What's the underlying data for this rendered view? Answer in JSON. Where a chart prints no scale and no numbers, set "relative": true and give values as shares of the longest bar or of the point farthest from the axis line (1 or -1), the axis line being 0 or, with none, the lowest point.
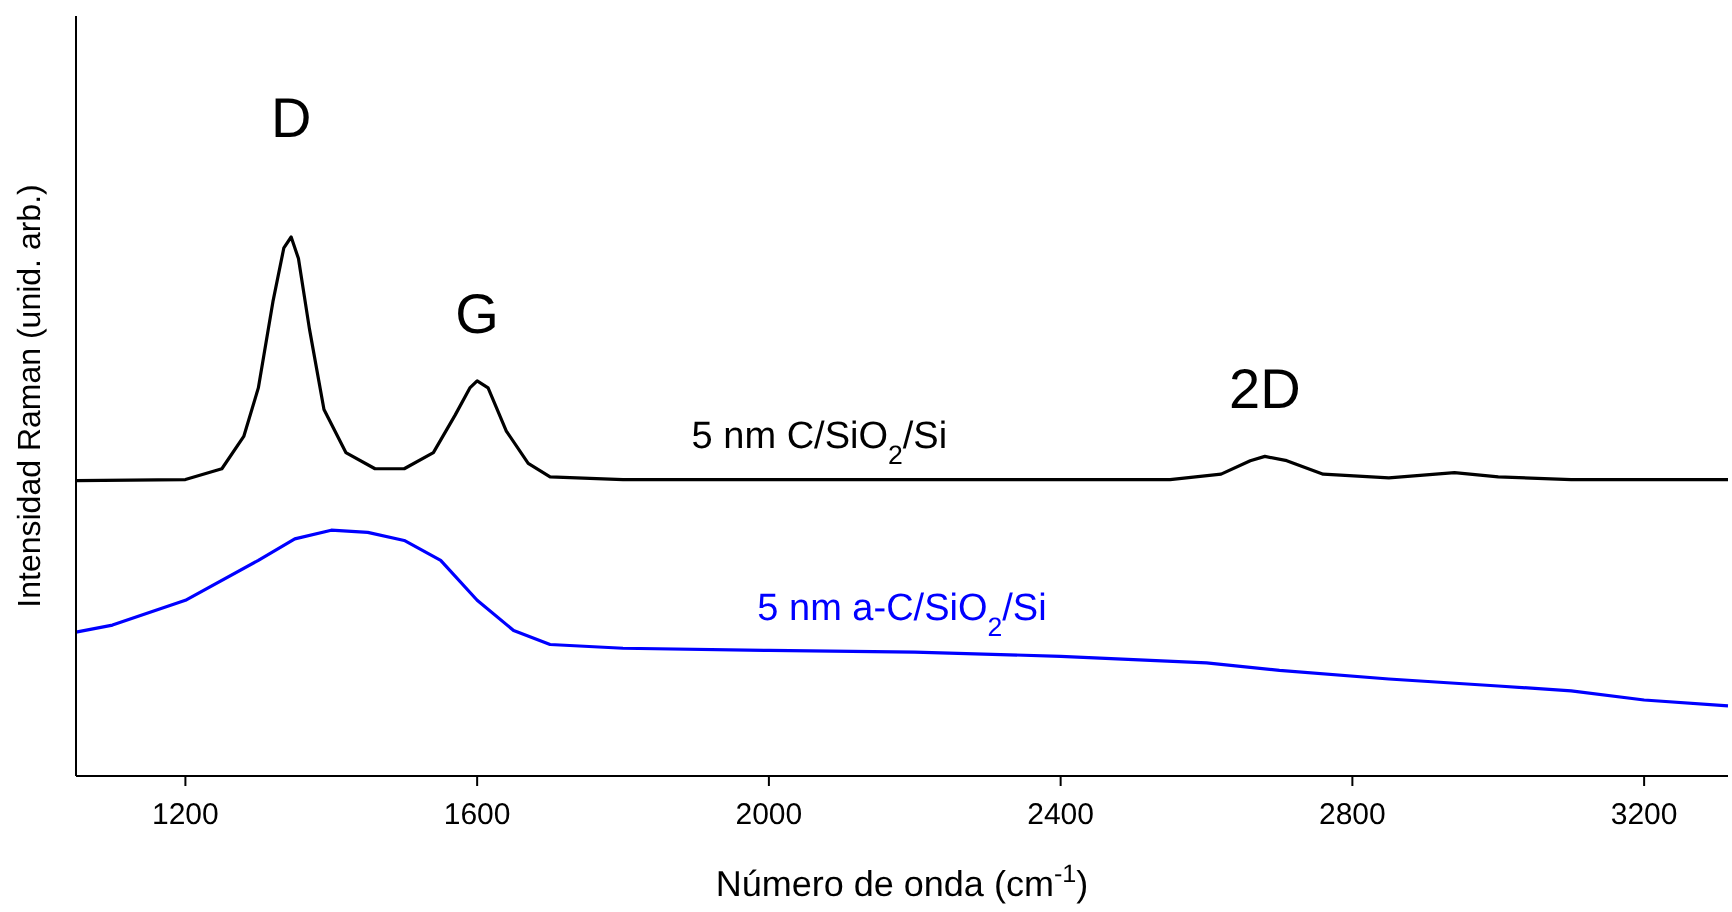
{
  "chart_data": {
    "type": "line",
    "relative": true,
    "xlabel": "Número de onda (cm$^{-1}$)",
    "ylabel": "Intensidad Raman (unid. arb.)",
    "xlim": [
      1050,
      3315
    ],
    "xticks": [
      1200,
      1600,
      2000,
      2400,
      2800,
      3200
    ],
    "grid": false,
    "marker": "none",
    "line_style": "solid",
    "annotations": [
      "D",
      "G",
      "2D"
    ],
    "series": [
      {
        "name": "5 nm C/SiO$_{2}$/Si",
        "color": "#000000",
        "x": [
          1050,
          1200,
          1250,
          1280,
          1300,
          1320,
          1335,
          1345,
          1355,
          1370,
          1390,
          1420,
          1460,
          1500,
          1540,
          1570,
          1590,
          1600,
          1615,
          1640,
          1670,
          1700,
          1800,
          2000,
          2300,
          2550,
          2620,
          2660,
          2680,
          2710,
          2760,
          2850,
          2940,
          3000,
          3100,
          3315
        ],
        "values": [
          0.548,
          0.55,
          0.57,
          0.63,
          0.72,
          0.88,
          0.98,
          1.0,
          0.96,
          0.83,
          0.68,
          0.6,
          0.57,
          0.57,
          0.6,
          0.67,
          0.72,
          0.733,
          0.72,
          0.64,
          0.58,
          0.555,
          0.55,
          0.55,
          0.55,
          0.55,
          0.56,
          0.585,
          0.593,
          0.585,
          0.56,
          0.553,
          0.563,
          0.555,
          0.55,
          0.55
        ]
      },
      {
        "name": "5 nm a-C/SiO$_{2}$/Si",
        "color": "#0000ff",
        "x": [
          1050,
          1100,
          1200,
          1300,
          1350,
          1400,
          1450,
          1500,
          1550,
          1600,
          1650,
          1700,
          1800,
          2000,
          2200,
          2400,
          2600,
          2700,
          2850,
          3000,
          3100,
          3200,
          3315
        ],
        "values": [
          0.267,
          0.28,
          0.326,
          0.4,
          0.44,
          0.456,
          0.452,
          0.437,
          0.4,
          0.326,
          0.27,
          0.244,
          0.237,
          0.233,
          0.23,
          0.222,
          0.21,
          0.196,
          0.18,
          0.167,
          0.158,
          0.141,
          0.13
        ]
      }
    ]
  }
}
